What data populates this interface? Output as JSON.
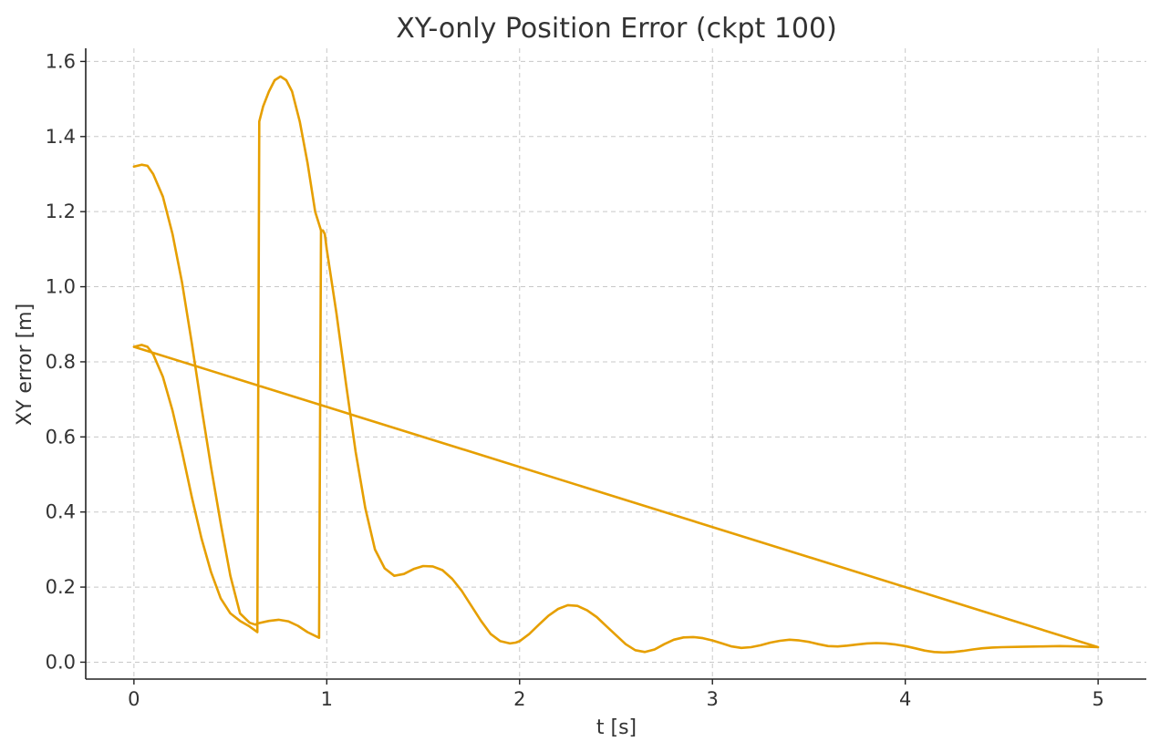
{
  "chart_data": {
    "type": "line",
    "title": "XY-only Position Error (ckpt 100)",
    "xlabel": "t [s]",
    "ylabel": "XY error [m]",
    "xlim": [
      -0.25,
      5.25
    ],
    "ylim": [
      -0.045,
      1.635
    ],
    "xticks": [
      0,
      1,
      2,
      3,
      4,
      5
    ],
    "xtick_labels": [
      "0",
      "1",
      "2",
      "3",
      "4",
      "5"
    ],
    "yticks": [
      0.0,
      0.2,
      0.4,
      0.6,
      0.8,
      1.0,
      1.2,
      1.4,
      1.6
    ],
    "ytick_labels": [
      "0.0",
      "0.2",
      "0.4",
      "0.6",
      "0.8",
      "1.0",
      "1.2",
      "1.4",
      "1.6"
    ],
    "grid": true,
    "series": [
      {
        "color": "#E69F00",
        "x": [
          0,
          0.04,
          0.07,
          0.1,
          0.15,
          0.2,
          0.25,
          0.3,
          0.35,
          0.4,
          0.45,
          0.5,
          0.55,
          0.6,
          0.64,
          0.65,
          0.67,
          0.7,
          0.73,
          0.76,
          0.79,
          0.82,
          0.86,
          0.9,
          0.94,
          0.97,
          0.98,
          0.99,
          1.0,
          1.05,
          1.1,
          1.15,
          1.2,
          1.25,
          1.3,
          1.35,
          1.4,
          1.45,
          1.5,
          1.55,
          1.6,
          1.65,
          1.7,
          1.75,
          1.8,
          1.85,
          1.9,
          1.95,
          1.98,
          2.0,
          2.05,
          2.1,
          2.15,
          2.2,
          2.25,
          2.3,
          2.35,
          2.4,
          2.45,
          2.5,
          2.55,
          2.6,
          2.65,
          2.7,
          2.75,
          2.8,
          2.85,
          2.9,
          2.95,
          3.0,
          3.05,
          3.1,
          3.15,
          3.2,
          3.25,
          3.3,
          3.35,
          3.4,
          3.45,
          3.5,
          3.55,
          3.6,
          3.65,
          3.7,
          3.75,
          3.8,
          3.85,
          3.9,
          3.95,
          4.0,
          4.05,
          4.1,
          4.15,
          4.2,
          4.25,
          4.3,
          4.35,
          4.4,
          4.45,
          4.5,
          4.6,
          4.7,
          4.8,
          4.9,
          5.0,
          0
        ],
        "y": [
          0.84,
          0.845,
          0.84,
          0.82,
          0.76,
          0.67,
          0.56,
          0.44,
          0.33,
          0.24,
          0.17,
          0.13,
          0.11,
          0.095,
          0.08,
          1.44,
          1.48,
          1.52,
          1.55,
          1.56,
          1.55,
          1.52,
          1.44,
          1.33,
          1.2,
          1.15,
          1.15,
          1.14,
          1.1,
          0.93,
          0.74,
          0.56,
          0.41,
          0.3,
          0.25,
          0.23,
          0.235,
          0.248,
          0.256,
          0.255,
          0.245,
          0.222,
          0.19,
          0.15,
          0.11,
          0.075,
          0.056,
          0.05,
          0.052,
          0.056,
          0.075,
          0.1,
          0.124,
          0.142,
          0.152,
          0.15,
          0.138,
          0.12,
          0.096,
          0.072,
          0.048,
          0.032,
          0.027,
          0.034,
          0.048,
          0.06,
          0.066,
          0.067,
          0.064,
          0.058,
          0.05,
          0.042,
          0.038,
          0.04,
          0.045,
          0.052,
          0.057,
          0.06,
          0.058,
          0.054,
          0.048,
          0.043,
          0.042,
          0.044,
          0.047,
          0.05,
          0.051,
          0.05,
          0.047,
          0.043,
          0.037,
          0.031,
          0.027,
          0.026,
          0.027,
          0.03,
          0.034,
          0.037,
          0.039,
          0.04,
          0.041,
          0.042,
          0.043,
          0.042,
          0.04,
          0.84
        ]
      },
      {
        "color": "#E69F00",
        "x": [
          0,
          0.04,
          0.07,
          0.1,
          0.15,
          0.2,
          0.25,
          0.3,
          0.35,
          0.4,
          0.45,
          0.5,
          0.55,
          0.6,
          0.63,
          0.64,
          0.7,
          0.75,
          0.8,
          0.85,
          0.9,
          0.96,
          0.965,
          0.97
        ],
        "y": [
          1.32,
          1.325,
          1.322,
          1.3,
          1.24,
          1.14,
          1.01,
          0.85,
          0.68,
          0.52,
          0.37,
          0.23,
          0.13,
          0.105,
          0.1,
          0.103,
          0.11,
          0.113,
          0.109,
          0.097,
          0.08,
          0.065,
          0.6,
          1.15
        ]
      }
    ]
  }
}
